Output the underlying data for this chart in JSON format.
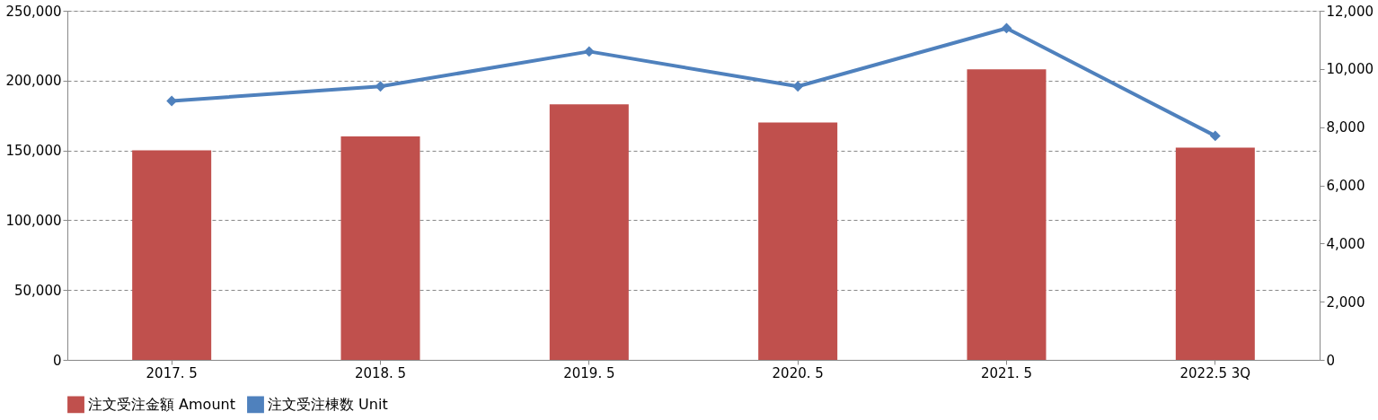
{
  "chart_data": {
    "type": "bar",
    "categories": [
      "2017. 5",
      "2018. 5",
      "2019. 5",
      "2020. 5",
      "2021. 5",
      "2022.5 3Q"
    ],
    "series": [
      {
        "name": "注文受注金額 Amount",
        "color": "#c0504d",
        "values": [
          150000,
          160000,
          183000,
          170000,
          208000,
          152000
        ]
      },
      {
        "name": "注文受注棟数 Unit",
        "type": "line",
        "axis": "y2",
        "color": "#4f81bd",
        "marker": "diamond",
        "values": [
          8900,
          9400,
          10600,
          9400,
          11400,
          7700
        ]
      }
    ],
    "ylim": [
      0,
      250000
    ],
    "yticks": [
      0,
      {
        "value": 50000,
        "label": "50,000"
      },
      {
        "value": 100000,
        "label": "100,000"
      },
      {
        "value": 150000,
        "label": "150,000"
      },
      {
        "value": 200000,
        "label": "200,000"
      },
      {
        "value": 250000,
        "label": "250,000"
      }
    ],
    "y2lim": [
      0,
      12000
    ],
    "y2ticks": [
      0,
      {
        "value": 2000,
        "label": "2,000"
      },
      {
        "value": 4000,
        "label": "4,000"
      },
      {
        "value": 6000,
        "label": "6,000"
      },
      {
        "value": 8000,
        "label": "8,000"
      },
      {
        "value": 10000,
        "label": "10,000"
      },
      {
        "value": 12000,
        "label": "12,000"
      }
    ],
    "grid": "y",
    "legend": "bottom",
    "line_style": "solid"
  }
}
